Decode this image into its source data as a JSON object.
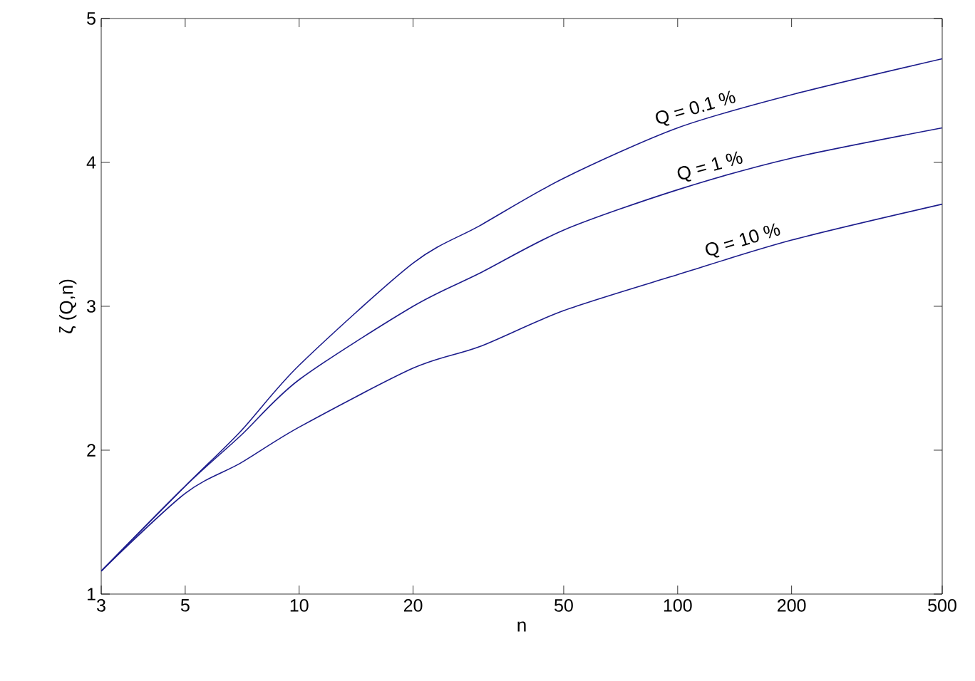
{
  "chart_data": {
    "type": "line",
    "xlabel": "n",
    "ylabel": "ζ (Q,n)",
    "log": "x",
    "x": [
      3,
      5,
      7,
      10,
      20,
      30,
      50,
      100,
      200,
      500
    ],
    "series": [
      {
        "name": "Q = 0.1 %",
        "color": "#1c1c8c",
        "values": [
          1.16,
          1.75,
          2.13,
          2.59,
          3.3,
          3.56,
          3.89,
          4.24,
          4.47,
          4.72
        ]
      },
      {
        "name": "Q = 1 %",
        "color": "#1c1c8c",
        "values": [
          1.16,
          1.75,
          2.1,
          2.49,
          3.0,
          3.23,
          3.53,
          3.81,
          4.03,
          4.24
        ]
      },
      {
        "name": "Q = 10 %",
        "color": "#1c1c8c",
        "values": [
          1.16,
          1.7,
          1.91,
          2.16,
          2.57,
          2.72,
          2.97,
          3.22,
          3.46,
          3.71
        ]
      }
    ],
    "xlim": [
      3,
      500
    ],
    "ylim": [
      1,
      5
    ],
    "xticks": [
      3,
      5,
      10,
      20,
      50,
      100,
      200,
      500
    ],
    "yticks": [
      1,
      2,
      3,
      4,
      5
    ],
    "grid": false,
    "legend": false,
    "marker": "none",
    "line_style": "solid"
  }
}
